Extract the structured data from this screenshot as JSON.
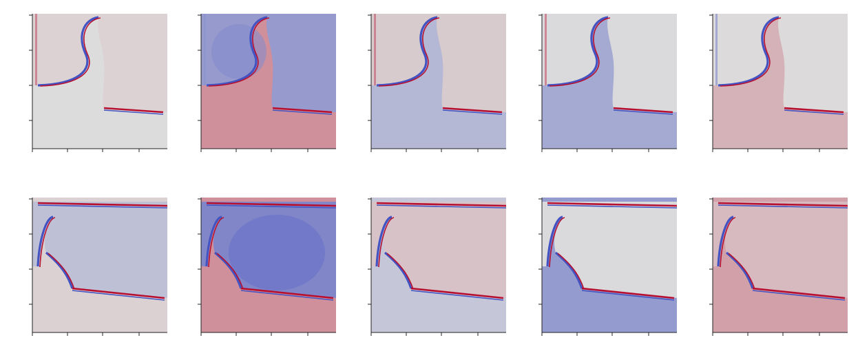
{
  "chart_data": {
    "type": "heatmap",
    "grid": false,
    "layout": {
      "rows": 2,
      "cols": 5
    },
    "tick_labels_visible": false,
    "colormap": {
      "name": "coolwarm",
      "low": "#3b4cc0",
      "mid": "#dddcdc",
      "high": "#b40426"
    },
    "panels": [
      {
        "row": 0,
        "col": 0,
        "background_level": 0.0,
        "front": "single",
        "region": "upper-left",
        "interior_level": 0.05
      },
      {
        "row": 0,
        "col": 1,
        "background_level": 0.35,
        "front": "single",
        "region": "upper-left",
        "interior_level": -0.45
      },
      {
        "row": 0,
        "col": 2,
        "background_level": -0.25,
        "front": "single",
        "region": "upper-left",
        "interior_level": 0.08
      },
      {
        "row": 0,
        "col": 3,
        "background_level": -0.35,
        "front": "single",
        "region": "upper-left",
        "interior_level": 0.0
      },
      {
        "row": 0,
        "col": 4,
        "background_level": 0.2,
        "front": "single",
        "region": "upper-left",
        "interior_level": 0.0
      },
      {
        "row": 1,
        "col": 0,
        "background_level": 0.05,
        "front": "double",
        "region": "full",
        "interior_level": -0.2
      },
      {
        "row": 1,
        "col": 1,
        "background_level": 0.35,
        "front": "double",
        "region": "full",
        "interior_level": -0.6
      },
      {
        "row": 1,
        "col": 2,
        "background_level": -0.15,
        "front": "double",
        "region": "full",
        "interior_level": 0.12
      },
      {
        "row": 1,
        "col": 3,
        "background_level": -0.45,
        "front": "double",
        "region": "full",
        "interior_level": 0.0
      },
      {
        "row": 1,
        "col": 4,
        "background_level": 0.28,
        "front": "double",
        "region": "full",
        "interior_level": 0.15
      }
    ]
  }
}
